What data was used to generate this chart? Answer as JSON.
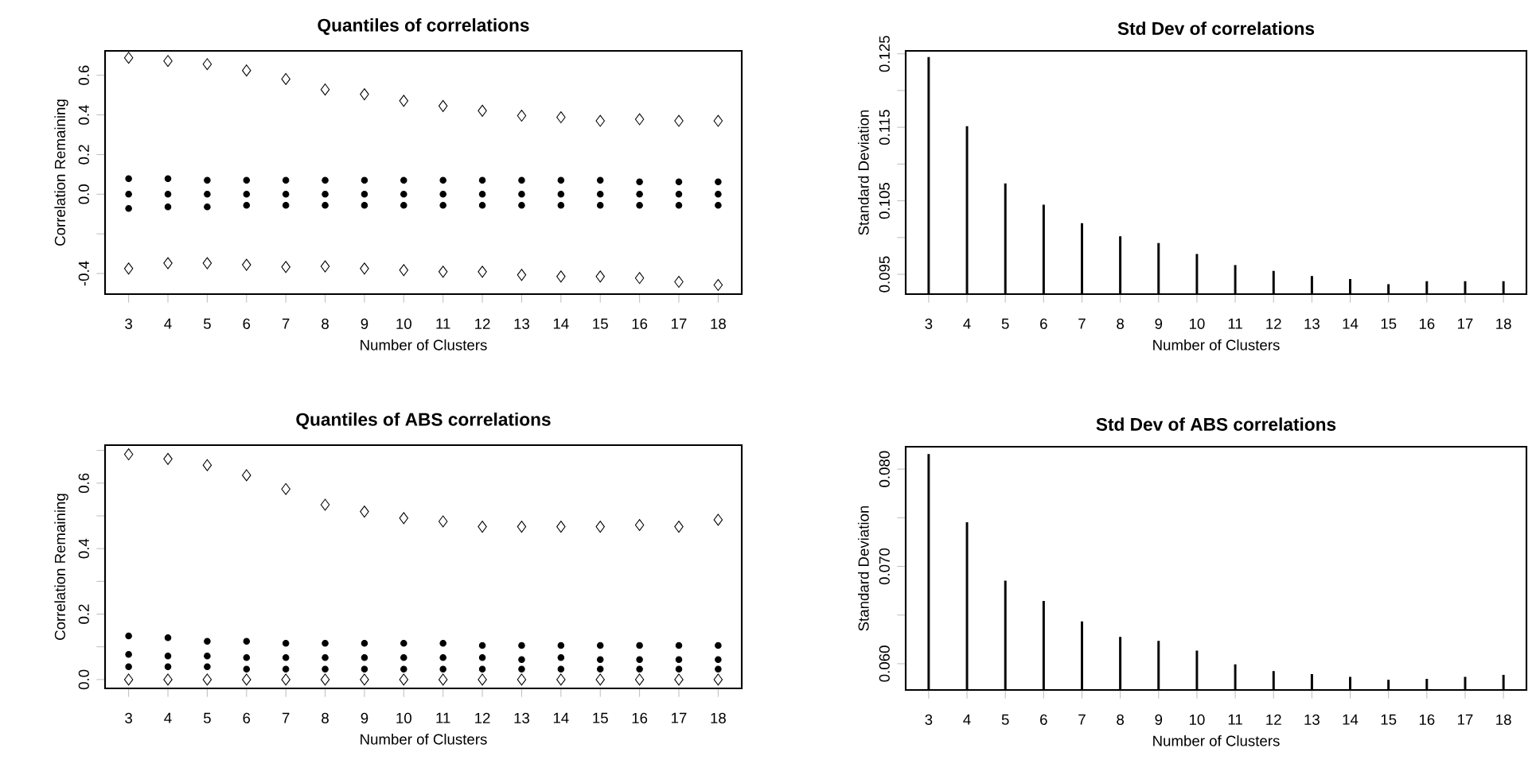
{
  "chart_data": [
    {
      "type": "scatter",
      "title": "Quantiles of correlations",
      "xlabel": "Number of Clusters",
      "ylabel": "Correlation Remaining",
      "x": [
        3,
        4,
        5,
        6,
        7,
        8,
        9,
        10,
        11,
        12,
        13,
        14,
        15,
        16,
        17,
        18
      ],
      "xlim": [
        2.4,
        18.6
      ],
      "xticks": [
        3,
        4,
        5,
        6,
        7,
        8,
        9,
        10,
        11,
        12,
        13,
        14,
        15,
        16,
        17,
        18
      ],
      "ylim": [
        -0.504,
        0.723
      ],
      "yticks": [
        {
          "value": -0.4,
          "label": "-0.4"
        },
        {
          "value": -0.2,
          "label": null
        },
        {
          "value": 0.0,
          "label": "0.0"
        },
        {
          "value": 0.2,
          "label": "0.2"
        },
        {
          "value": 0.4,
          "label": "0.4"
        },
        {
          "value": 0.6,
          "label": "0.6"
        }
      ],
      "series": [
        {
          "color": "#000000",
          "marker": "diamond",
          "values": [
            0.688,
            0.672,
            0.656,
            0.624,
            0.581,
            0.528,
            0.504,
            0.471,
            0.445,
            0.421,
            0.396,
            0.388,
            0.37,
            0.378,
            0.37,
            0.37
          ]
        },
        {
          "color": "#000000",
          "marker": "circle",
          "values": [
            0.078,
            0.078,
            0.07,
            0.07,
            0.07,
            0.07,
            0.07,
            0.07,
            0.07,
            0.07,
            0.07,
            0.07,
            0.07,
            0.062,
            0.062,
            0.062
          ]
        },
        {
          "color": "#000000",
          "marker": "circle",
          "values": [
            0,
            0,
            0,
            0,
            0,
            0,
            0,
            0,
            0,
            0,
            0,
            0,
            0,
            0,
            0,
            0
          ]
        },
        {
          "color": "#000000",
          "marker": "circle",
          "values": [
            -0.072,
            -0.064,
            -0.064,
            -0.056,
            -0.056,
            -0.056,
            -0.056,
            -0.056,
            -0.056,
            -0.056,
            -0.056,
            -0.056,
            -0.056,
            -0.056,
            -0.056,
            -0.056
          ]
        },
        {
          "color": "#000000",
          "marker": "diamond",
          "values": [
            -0.375,
            -0.348,
            -0.348,
            -0.356,
            -0.367,
            -0.364,
            -0.375,
            -0.383,
            -0.391,
            -0.391,
            -0.407,
            -0.415,
            -0.415,
            -0.423,
            -0.442,
            -0.458
          ]
        }
      ]
    },
    {
      "type": "bar",
      "title": "Std Dev of correlations",
      "xlabel": "Number of Clusters",
      "ylabel": "Standard Deviation",
      "x": [
        3,
        4,
        5,
        6,
        7,
        8,
        9,
        10,
        11,
        12,
        13,
        14,
        15,
        16,
        17,
        18
      ],
      "xlim": [
        2.4,
        18.6
      ],
      "xticks": [
        3,
        4,
        5,
        6,
        7,
        8,
        9,
        10,
        11,
        12,
        13,
        14,
        15,
        16,
        17,
        18
      ],
      "ylim": [
        0.0923,
        0.1254
      ],
      "yticks": [
        {
          "value": 0.095,
          "label": "0.095"
        },
        {
          "value": 0.1,
          "label": null
        },
        {
          "value": 0.105,
          "label": "0.105"
        },
        {
          "value": 0.11,
          "label": null
        },
        {
          "value": 0.115,
          "label": "0.115"
        },
        {
          "value": 0.12,
          "label": null
        },
        {
          "value": 0.125,
          "label": "0.125"
        }
      ],
      "color": "#000000",
      "values": [
        0.1245,
        0.1151,
        0.1073,
        0.1044,
        0.1019,
        0.1001,
        0.0992,
        0.0977,
        0.0962,
        0.0954,
        0.0947,
        0.0943,
        0.0936,
        0.094,
        0.094,
        0.094
      ]
    },
    {
      "type": "scatter",
      "title": "Quantiles of ABS correlations",
      "xlabel": "Number of Clusters",
      "ylabel": "Correlation Remaining",
      "x": [
        3,
        4,
        5,
        6,
        7,
        8,
        9,
        10,
        11,
        12,
        13,
        14,
        15,
        16,
        17,
        18
      ],
      "xlim": [
        2.4,
        18.6
      ],
      "xticks": [
        3,
        4,
        5,
        6,
        7,
        8,
        9,
        10,
        11,
        12,
        13,
        14,
        15,
        16,
        17,
        18
      ],
      "ylim": [
        -0.027,
        0.716
      ],
      "yticks": [
        {
          "value": 0.0,
          "label": "0.0"
        },
        {
          "value": 0.1,
          "label": null
        },
        {
          "value": 0.2,
          "label": "0.2"
        },
        {
          "value": 0.3,
          "label": null
        },
        {
          "value": 0.4,
          "label": "0.4"
        },
        {
          "value": 0.5,
          "label": null
        },
        {
          "value": 0.6,
          "label": "0.6"
        },
        {
          "value": 0.7,
          "label": null
        }
      ],
      "series": [
        {
          "color": "#000000",
          "marker": "diamond",
          "values": [
            0.688,
            0.674,
            0.655,
            0.624,
            0.582,
            0.534,
            0.513,
            0.493,
            0.483,
            0.467,
            0.467,
            0.467,
            0.467,
            0.472,
            0.467,
            0.488
          ]
        },
        {
          "color": "#000000",
          "marker": "circle",
          "values": [
            0.133,
            0.128,
            0.117,
            0.117,
            0.111,
            0.111,
            0.111,
            0.111,
            0.111,
            0.104,
            0.104,
            0.104,
            0.104,
            0.104,
            0.104,
            0.104
          ]
        },
        {
          "color": "#000000",
          "marker": "circle",
          "values": [
            0.077,
            0.072,
            0.072,
            0.067,
            0.067,
            0.067,
            0.067,
            0.067,
            0.067,
            0.067,
            0.061,
            0.067,
            0.061,
            0.061,
            0.061,
            0.061
          ]
        },
        {
          "color": "#000000",
          "marker": "circle",
          "values": [
            0.039,
            0.039,
            0.039,
            0.032,
            0.032,
            0.032,
            0.032,
            0.032,
            0.032,
            0.032,
            0.032,
            0.032,
            0.032,
            0.032,
            0.032,
            0.032
          ]
        },
        {
          "color": "#000000",
          "marker": "diamond",
          "values": [
            0,
            0,
            0,
            0,
            0,
            0,
            0,
            0,
            0,
            0,
            0,
            0,
            0,
            0,
            0,
            0
          ]
        }
      ]
    },
    {
      "type": "bar",
      "title": "Std Dev of ABS correlations",
      "xlabel": "Number of Clusters",
      "ylabel": "Standard Deviation",
      "x": [
        3,
        4,
        5,
        6,
        7,
        8,
        9,
        10,
        11,
        12,
        13,
        14,
        15,
        16,
        17,
        18
      ],
      "xlim": [
        2.4,
        18.6
      ],
      "xticks": [
        3,
        4,
        5,
        6,
        7,
        8,
        9,
        10,
        11,
        12,
        13,
        14,
        15,
        16,
        17,
        18
      ],
      "ylim": [
        0.0573,
        0.0823
      ],
      "yticks": [
        {
          "value": 0.06,
          "label": "0.060"
        },
        {
          "value": 0.065,
          "label": null
        },
        {
          "value": 0.07,
          "label": "0.070"
        },
        {
          "value": 0.075,
          "label": null
        },
        {
          "value": 0.08,
          "label": "0.080"
        }
      ],
      "color": "#000000",
      "values": [
        0.0815,
        0.0745,
        0.0685,
        0.0664,
        0.0643,
        0.0627,
        0.0623,
        0.0613,
        0.0599,
        0.0592,
        0.0589,
        0.0586,
        0.0583,
        0.0584,
        0.0586,
        0.0588
      ]
    }
  ]
}
